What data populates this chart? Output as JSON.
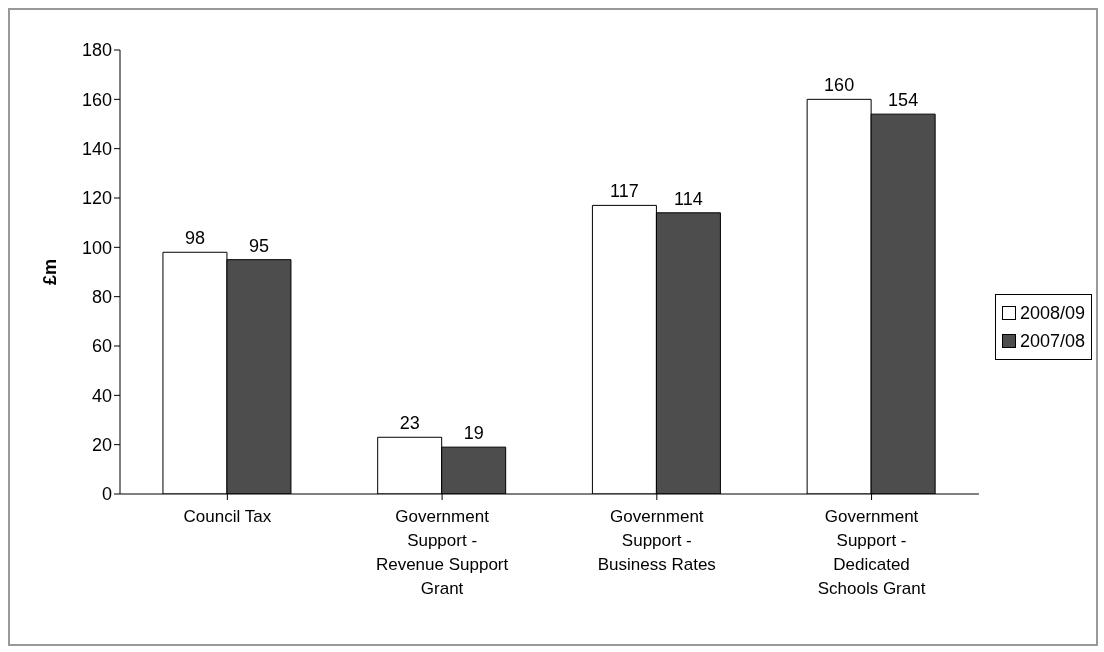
{
  "chart_data": {
    "type": "bar",
    "ylabel": "£m",
    "categories": [
      "Council Tax",
      "Government Support - Revenue Support Grant",
      "Government Support - Business Rates",
      "Government Support - Dedicated Schools Grant"
    ],
    "series": [
      {
        "name": "2008/09",
        "color": "#ffffff",
        "values": [
          98,
          23,
          117,
          160
        ]
      },
      {
        "name": "2007/08",
        "color": "#4d4d4d",
        "values": [
          95,
          19,
          114,
          154
        ]
      }
    ],
    "ylim": [
      0,
      180
    ],
    "yticks": [
      0,
      20,
      40,
      60,
      80,
      100,
      120,
      140,
      160,
      180
    ],
    "grid": false,
    "legend": "right",
    "data_labels": true
  }
}
